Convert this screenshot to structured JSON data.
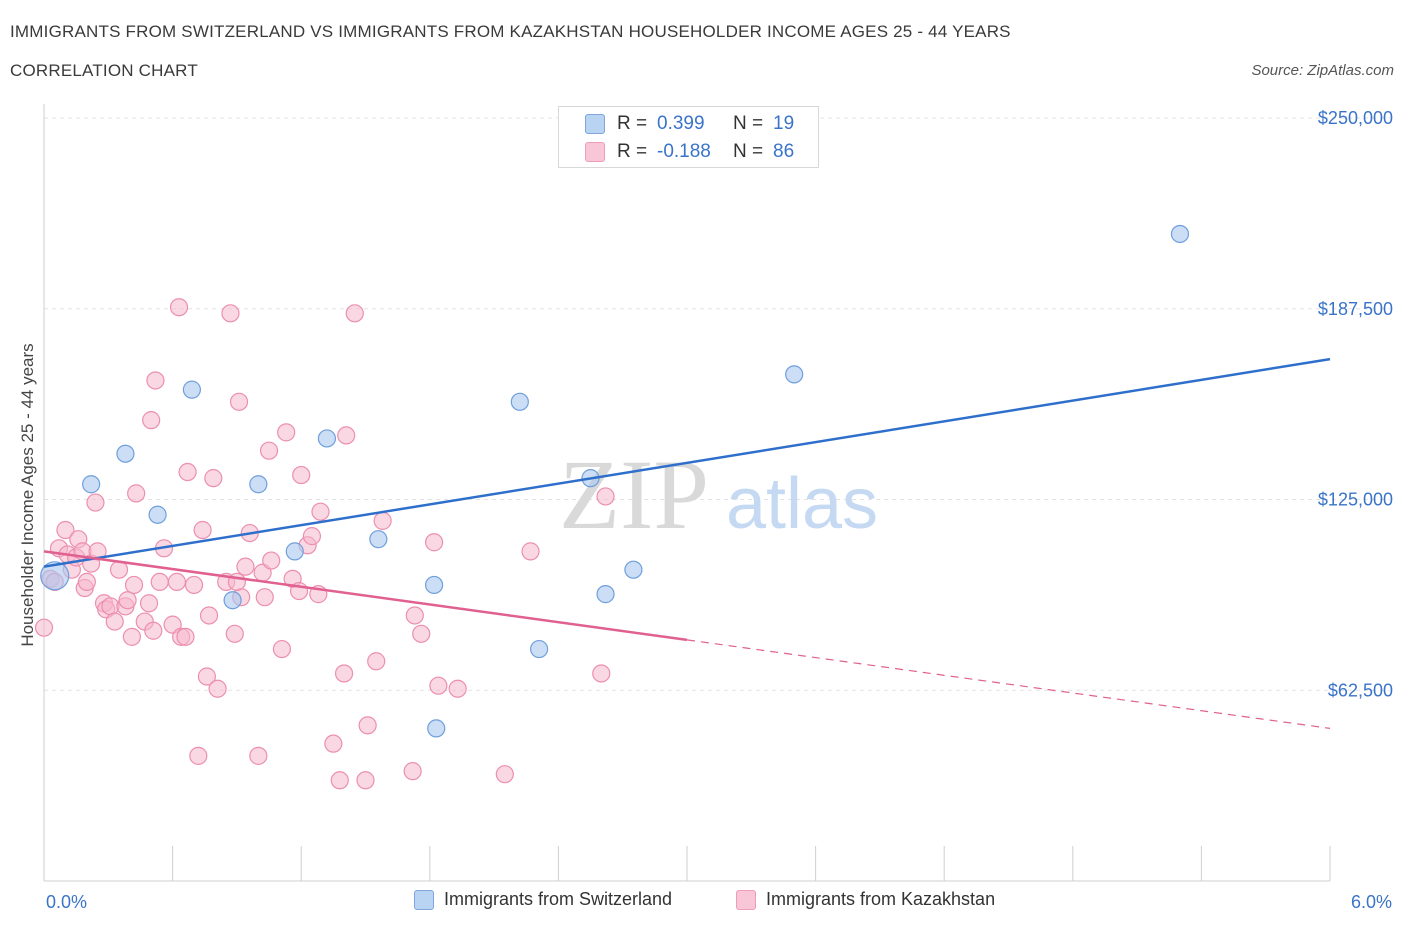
{
  "header": {
    "title": "IMMIGRANTS FROM SWITZERLAND VS IMMIGRANTS FROM KAZAKHSTAN HOUSEHOLDER INCOME AGES 25 - 44 YEARS",
    "subtitle": "CORRELATION CHART",
    "source": "Source: ZipAtlas.com"
  },
  "legend": {
    "r_label": "R =",
    "n_label": "N =",
    "series": [
      {
        "name": "Immigrants from Switzerland",
        "r": "0.399",
        "n": "19"
      },
      {
        "name": "Immigrants from Kazakhstan",
        "r": "-0.188",
        "n": "86"
      }
    ]
  },
  "watermark": {
    "zip": "ZIP",
    "atlas": "atlas"
  },
  "colors": {
    "switzerland_fill": "#a9c8f0",
    "switzerland_stroke": "#6f9fdc",
    "switzerland_line": "#2f6fcc",
    "kazakhstan_fill": "#f6b8cc",
    "kazakhstan_stroke": "#ec8fae",
    "kazakhstan_line": "#e0608f",
    "axis_text": "#3a74c9",
    "grid": "#e3e3e3"
  },
  "chart_data": {
    "type": "scatter",
    "xlabel": "",
    "ylabel": "Householder Income Ages 25 - 44 years",
    "xlim": [
      0,
      6
    ],
    "ylim": [
      0,
      250000
    ],
    "x_tick_labels": [
      "0.0%",
      "6.0%"
    ],
    "y_ticks": [
      62500,
      125000,
      187500,
      250000
    ],
    "y_tick_labels": [
      "$62,500",
      "$125,000",
      "$187,500",
      "$250,000"
    ],
    "grid": true,
    "legend_position": "top-center",
    "series": [
      {
        "name": "Immigrants from Switzerland",
        "r": 0.399,
        "n": 19,
        "trend": {
          "x0": 0.0,
          "y0": 103000,
          "x1": 6.0,
          "y1": 171000
        },
        "points": [
          [
            0.05,
            100000
          ],
          [
            0.22,
            130000
          ],
          [
            0.38,
            140000
          ],
          [
            0.53,
            120000
          ],
          [
            0.69,
            161000
          ],
          [
            0.88,
            92000
          ],
          [
            1.0,
            130000
          ],
          [
            1.17,
            108000
          ],
          [
            1.32,
            145000
          ],
          [
            1.56,
            112000
          ],
          [
            1.83,
            50000
          ],
          [
            1.82,
            97000
          ],
          [
            2.22,
            157000
          ],
          [
            2.31,
            76000
          ],
          [
            2.55,
            132000
          ],
          [
            2.62,
            94000
          ],
          [
            2.75,
            102000
          ],
          [
            3.5,
            166000
          ],
          [
            5.3,
            212000
          ]
        ]
      },
      {
        "name": "Immigrants from Kazakhstan",
        "r": -0.188,
        "n": 86,
        "trend": {
          "x0": 0.0,
          "y0": 108000,
          "x1": 3.0,
          "y1": 79000,
          "dashed_to": {
            "x": 6.0,
            "y": 50000
          }
        },
        "points": [
          [
            0.0,
            83000
          ],
          [
            0.03,
            99000
          ],
          [
            0.05,
            98000
          ],
          [
            0.07,
            109000
          ],
          [
            0.1,
            115000
          ],
          [
            0.11,
            107000
          ],
          [
            0.13,
            102000
          ],
          [
            0.15,
            106000
          ],
          [
            0.16,
            112000
          ],
          [
            0.18,
            108000
          ],
          [
            0.19,
            96000
          ],
          [
            0.22,
            104000
          ],
          [
            0.24,
            124000
          ],
          [
            0.25,
            108000
          ],
          [
            0.28,
            91000
          ],
          [
            0.29,
            89000
          ],
          [
            0.31,
            90000
          ],
          [
            0.33,
            85000
          ],
          [
            0.35,
            102000
          ],
          [
            0.38,
            90000
          ],
          [
            0.39,
            92000
          ],
          [
            0.41,
            80000
          ],
          [
            0.42,
            97000
          ],
          [
            0.43,
            127000
          ],
          [
            0.47,
            85000
          ],
          [
            0.49,
            91000
          ],
          [
            0.5,
            151000
          ],
          [
            0.51,
            82000
          ],
          [
            0.52,
            164000
          ],
          [
            0.54,
            98000
          ],
          [
            0.56,
            109000
          ],
          [
            0.6,
            84000
          ],
          [
            0.62,
            98000
          ],
          [
            0.63,
            188000
          ],
          [
            0.64,
            80000
          ],
          [
            0.66,
            80000
          ],
          [
            0.67,
            134000
          ],
          [
            0.7,
            97000
          ],
          [
            0.72,
            41000
          ],
          [
            0.74,
            115000
          ],
          [
            0.76,
            67000
          ],
          [
            0.77,
            87000
          ],
          [
            0.79,
            132000
          ],
          [
            0.81,
            63000
          ],
          [
            0.85,
            98000
          ],
          [
            0.87,
            186000
          ],
          [
            0.89,
            81000
          ],
          [
            0.91,
            157000
          ],
          [
            0.92,
            93000
          ],
          [
            0.94,
            103000
          ],
          [
            0.96,
            114000
          ],
          [
            1.0,
            41000
          ],
          [
            1.02,
            101000
          ],
          [
            1.03,
            93000
          ],
          [
            1.05,
            141000
          ],
          [
            1.11,
            76000
          ],
          [
            1.13,
            147000
          ],
          [
            1.16,
            99000
          ],
          [
            1.19,
            95000
          ],
          [
            1.2,
            133000
          ],
          [
            1.23,
            110000
          ],
          [
            1.25,
            113000
          ],
          [
            1.28,
            94000
          ],
          [
            1.29,
            121000
          ],
          [
            1.35,
            45000
          ],
          [
            1.38,
            33000
          ],
          [
            1.4,
            68000
          ],
          [
            1.41,
            146000
          ],
          [
            1.45,
            186000
          ],
          [
            1.5,
            33000
          ],
          [
            1.51,
            51000
          ],
          [
            1.55,
            72000
          ],
          [
            1.58,
            118000
          ],
          [
            1.72,
            36000
          ],
          [
            1.73,
            87000
          ],
          [
            1.76,
            81000
          ],
          [
            1.82,
            111000
          ],
          [
            1.84,
            64000
          ],
          [
            1.93,
            63000
          ],
          [
            2.15,
            35000
          ],
          [
            2.27,
            108000
          ],
          [
            2.6,
            68000
          ],
          [
            2.62,
            126000
          ],
          [
            1.06,
            105000
          ],
          [
            0.2,
            98000
          ],
          [
            0.9,
            98000
          ]
        ]
      }
    ]
  }
}
